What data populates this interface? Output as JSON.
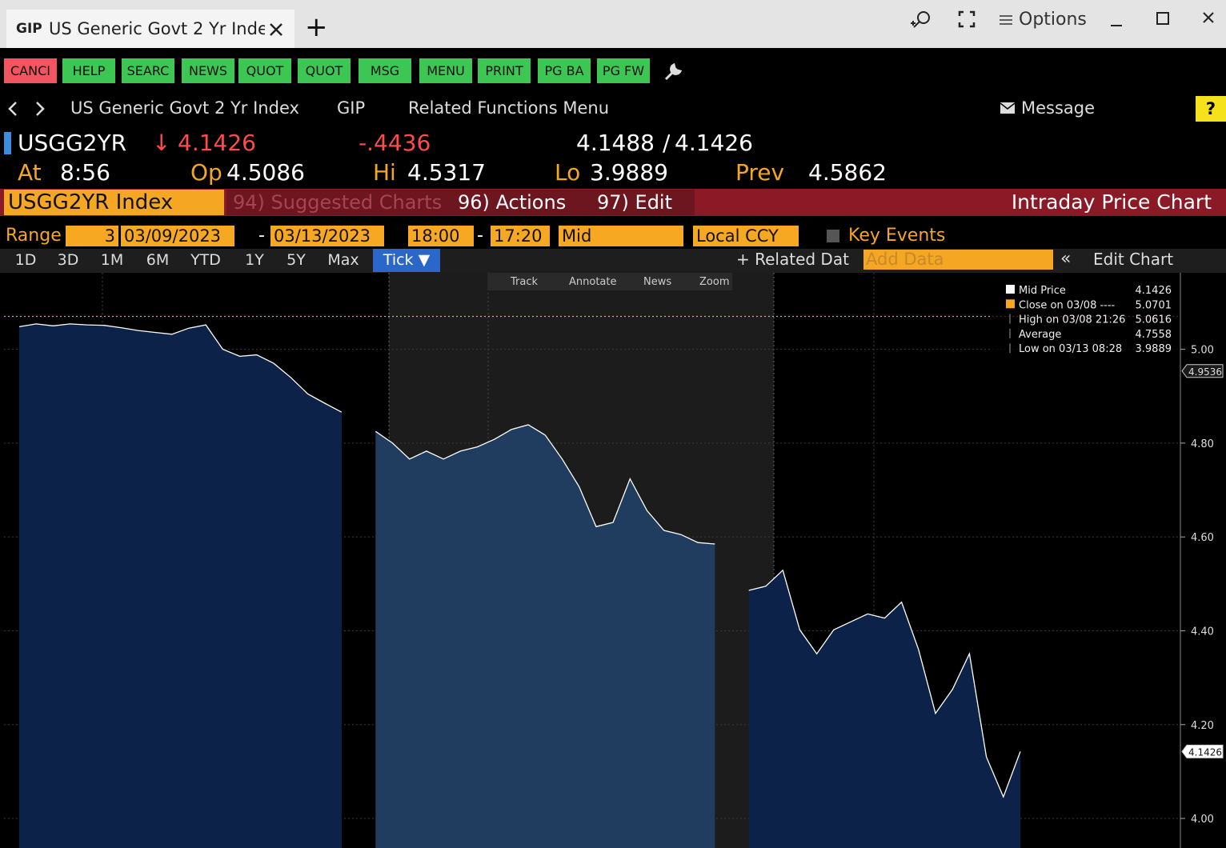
{
  "window": {
    "tab_code": "GIP",
    "tab_title": "US Generic Govt 2 Yr Inde",
    "new_tab": "+",
    "options": "Options"
  },
  "toolbar": [
    "CANCI",
    "HELP",
    "SEARC",
    "NEWS",
    "QUOT",
    "QUOT",
    "MSG",
    "MENU",
    "PRINT",
    "PG BA",
    "PG FW"
  ],
  "nav": {
    "security": "US Generic Govt 2 Yr Index",
    "function": "GIP",
    "related": "Related Functions Menu",
    "message": "Message",
    "help": "?"
  },
  "quote": {
    "ticker": "USGG2YR",
    "direction": "↓",
    "last": "4.1426",
    "change": "-.4436",
    "bid": "4.1488",
    "separator": "/",
    "ask": "4.1426",
    "at_label": "At",
    "time": "8:56",
    "open_label": "Op",
    "open": "4.5086",
    "high_label": "Hi",
    "high": "4.5317",
    "low_label": "Lo",
    "low": "3.9889",
    "prev_label": "Prev",
    "prev": "4.5862"
  },
  "bar": {
    "security": "USGG2YR Index",
    "suggested": "94) Suggested Charts",
    "actions": "96) Actions",
    "edit": "97) Edit",
    "title": "Intraday Price Chart"
  },
  "range": {
    "label": "Range",
    "days": "3",
    "start": "03/09/2023",
    "date_separator": "-",
    "end": "03/13/2023",
    "from_time": "18:00",
    "time_separator": "-",
    "to_time": "17:20",
    "field": "Mid",
    "currency": "Local CCY",
    "key_events": "Key Events"
  },
  "periods": [
    "1D",
    "3D",
    "1M",
    "6M",
    "YTD",
    "1Y",
    "5Y",
    "Max",
    "Tick ▼"
  ],
  "chart_tools": {
    "related": "+ Related Dat",
    "add_data": "Add Data",
    "edit_chart": "Edit Chart",
    "track": "Track",
    "annotate": "Annotate",
    "news": "News",
    "zoom": "Zoom"
  },
  "chart_data": {
    "type": "area",
    "series": [
      {
        "name": "Mid Price",
        "color": "#ffffff",
        "values": [
          5.048,
          5.054,
          5.05,
          5.054,
          5.052,
          5.051,
          5.046,
          5.04,
          5.036,
          5.032,
          5.045,
          5.052,
          5.0,
          4.985,
          4.988,
          4.97,
          4.94,
          4.905,
          4.885,
          4.866,
          null,
          4.825,
          4.8,
          4.766,
          4.783,
          4.766,
          4.783,
          4.792,
          4.808,
          4.829,
          4.839,
          4.817,
          4.766,
          4.707,
          4.622,
          4.631,
          4.724,
          4.656,
          4.614,
          4.605,
          4.588,
          4.585,
          null,
          4.486,
          4.495,
          4.529,
          4.402,
          4.351,
          4.402,
          4.419,
          4.436,
          4.427,
          4.461,
          4.36,
          4.224,
          4.275,
          4.351,
          4.131,
          4.046,
          4.1426
        ]
      }
    ],
    "legend": [
      {
        "label": "Mid Price",
        "value": 4.1426,
        "color": "#ffffff"
      },
      {
        "label": "Close on 03/08 ----",
        "value": 5.0701,
        "color": "#f5a623"
      },
      {
        "label": "High on 03/08 21:26",
        "value": 5.0616
      },
      {
        "label": "Average",
        "value": 4.7558
      },
      {
        "label": "Low on 03/13 08:28",
        "value": 3.9889
      }
    ],
    "price_tags": [
      4.9536,
      4.1426
    ],
    "ylim": [
      3.937,
      5.163
    ],
    "yticks": [
      {
        "value": 4,
        "label": "4.00"
      },
      {
        "value": 4.2,
        "label": "4.20"
      },
      {
        "value": 4.4,
        "label": "4.40"
      },
      {
        "value": 4.6,
        "label": "4.60"
      },
      {
        "value": 4.8,
        "label": "4.80"
      },
      {
        "value": 5,
        "label": "5.00"
      }
    ],
    "grid": true
  }
}
